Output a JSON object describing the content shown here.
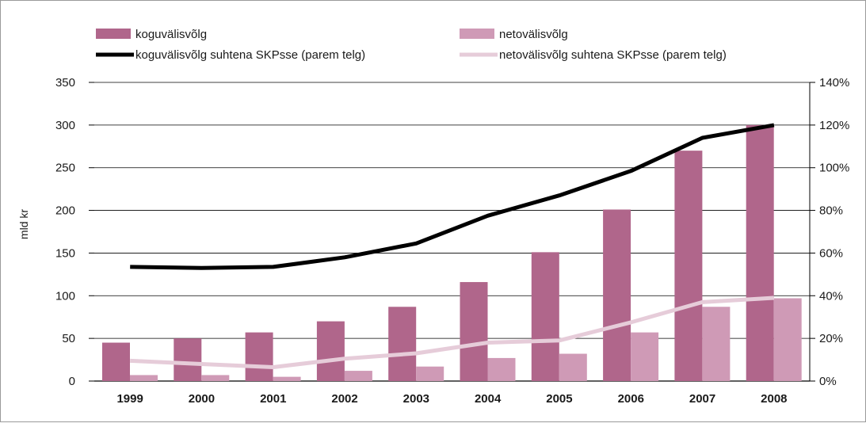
{
  "chart_data": {
    "type": "bar",
    "categories": [
      "1999",
      "2000",
      "2001",
      "2002",
      "2003",
      "2004",
      "2005",
      "2006",
      "2007",
      "2008"
    ],
    "ylabel": "mld kr",
    "ylim": [
      0,
      350
    ],
    "y_ticks": [
      "0",
      "50",
      "100",
      "150",
      "200",
      "250",
      "300",
      "350"
    ],
    "y2lim": [
      0,
      140
    ],
    "y2_ticks": [
      "0%",
      "20%",
      "40%",
      "60%",
      "80%",
      "100%",
      "120%",
      "140%"
    ],
    "gridlines": "horizontal",
    "legend_position": "top",
    "series": [
      {
        "name": "koguvälisvõlg",
        "type": "bar",
        "axis": "left",
        "color": "#b0668b",
        "values": [
          45,
          50,
          57,
          70,
          87,
          116,
          151,
          201,
          270,
          300
        ]
      },
      {
        "name": "netovälisvõlg",
        "type": "bar",
        "axis": "left",
        "color": "#cf9ab6",
        "values": [
          7,
          7,
          5,
          12,
          17,
          27,
          32,
          57,
          87,
          97
        ]
      },
      {
        "name": "koguvälisvõlg suhtena SKPsse (parem telg)",
        "type": "line",
        "axis": "right",
        "color": "#000000",
        "values": [
          53.5,
          53,
          53.5,
          58,
          64.5,
          77.5,
          87,
          98.5,
          114,
          120
        ]
      },
      {
        "name": "netovälisvõlg suhtena SKPsse (parem telg)",
        "type": "line",
        "axis": "right",
        "color": "#e6ccd9",
        "values": [
          9.5,
          8,
          6.5,
          10.5,
          13,
          18,
          19,
          27.5,
          37,
          39
        ]
      }
    ]
  }
}
